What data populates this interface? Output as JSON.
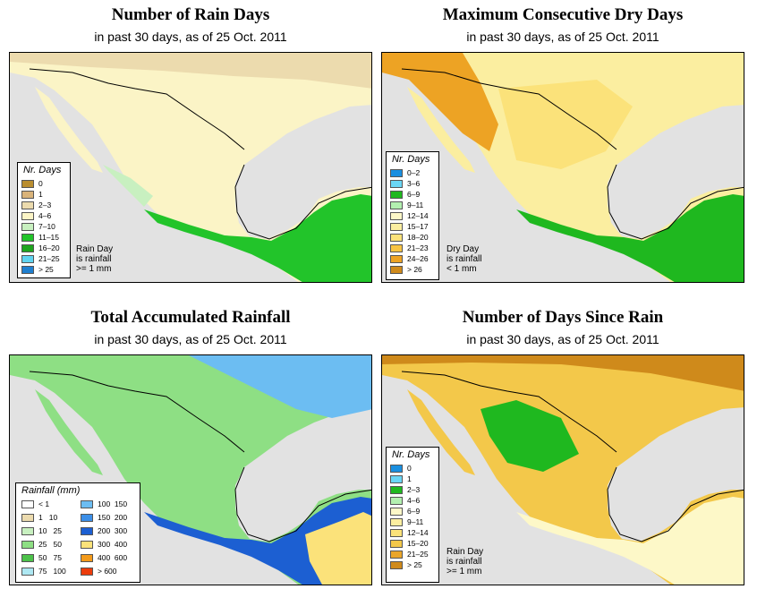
{
  "colors": {
    "ocean": "#e2e2e2",
    "land_light": "#fbf4c6",
    "border": "#000000"
  },
  "panels": [
    {
      "title": "Number of Rain Days",
      "subtitle": "in past 30 days, as of  25 Oct. 2011",
      "legend_title": "Nr. Days",
      "legend": [
        {
          "label": "0",
          "color": "#b98d2f"
        },
        {
          "label": "1",
          "color": "#d9b37a"
        },
        {
          "label": "2–3",
          "color": "#ecdbae"
        },
        {
          "label": "4–6",
          "color": "#fbf4c6"
        },
        {
          "label": "7–10",
          "color": "#c8f0c0"
        },
        {
          "label": "11–15",
          "color": "#22c42a"
        },
        {
          "label": "16–20",
          "color": "#1ea51e"
        },
        {
          "label": "21–25",
          "color": "#5fd3f0"
        },
        {
          "label": "> 25",
          "color": "#1f7fcf"
        }
      ],
      "note": "Rain Day\nis rainfall\n>= 1 mm"
    },
    {
      "title": "Maximum Consecutive Dry Days",
      "subtitle": "in past 30 days, as of  25 Oct. 2011",
      "legend_title": "Nr. Days",
      "legend": [
        {
          "label": "0–2",
          "color": "#1a8fe0"
        },
        {
          "label": "3–6",
          "color": "#6ad6f5"
        },
        {
          "label": "6–9",
          "color": "#1fb81f"
        },
        {
          "label": "9–11",
          "color": "#b3f0b0"
        },
        {
          "label": "12–14",
          "color": "#fdf8c8"
        },
        {
          "label": "15–17",
          "color": "#fbeea0"
        },
        {
          "label": "18–20",
          "color": "#fbe27a"
        },
        {
          "label": "21–23",
          "color": "#f7c444"
        },
        {
          "label": "24–26",
          "color": "#eda324"
        },
        {
          "label": "> 26",
          "color": "#cf8a1b"
        }
      ],
      "note": "Dry Day\nis rainfall\n< 1 mm"
    },
    {
      "title": "Total Accumulated Rainfall",
      "subtitle": "in past 30 days, as of  25 Oct. 2011",
      "legend_title": "Rainfall (mm)",
      "legend_left": [
        {
          "label": "< 1",
          "color": "#ffffff"
        },
        {
          "label": "1   10",
          "color": "#ecdbae"
        },
        {
          "label": "10   25",
          "color": "#c8f0c0"
        },
        {
          "label": "25   50",
          "color": "#8edf84"
        },
        {
          "label": "50   75",
          "color": "#4cc24a"
        },
        {
          "label": "75   100",
          "color": "#aee8f3"
        }
      ],
      "legend_right": [
        {
          "label": "100  150",
          "color": "#6cbdf2"
        },
        {
          "label": "150  200",
          "color": "#3c8fe8"
        },
        {
          "label": "200  300",
          "color": "#1c5fd2"
        },
        {
          "label": "300  400",
          "color": "#fbe27a"
        },
        {
          "label": "400  600",
          "color": "#f39a1a"
        },
        {
          "label": "> 600",
          "color": "#ec3c0c"
        }
      ]
    },
    {
      "title": "Number of Days Since Rain",
      "subtitle": "in past 30 days, as of  25 Oct. 2011",
      "legend_title": "Nr. Days",
      "legend": [
        {
          "label": "0",
          "color": "#1a8fe0"
        },
        {
          "label": "1",
          "color": "#6ad6f5"
        },
        {
          "label": "2–3",
          "color": "#1fb81f"
        },
        {
          "label": "4–6",
          "color": "#b3f0b0"
        },
        {
          "label": "6–9",
          "color": "#fdf8c8"
        },
        {
          "label": "9–11",
          "color": "#fbeea0"
        },
        {
          "label": "12–14",
          "color": "#fbe27a"
        },
        {
          "label": "15–20",
          "color": "#f3c84a"
        },
        {
          "label": "21–25",
          "color": "#eaa62a"
        },
        {
          "label": "> 25",
          "color": "#cf8a1b"
        }
      ],
      "note": "Rain Day\nis rainfall\n>= 1 mm"
    }
  ]
}
